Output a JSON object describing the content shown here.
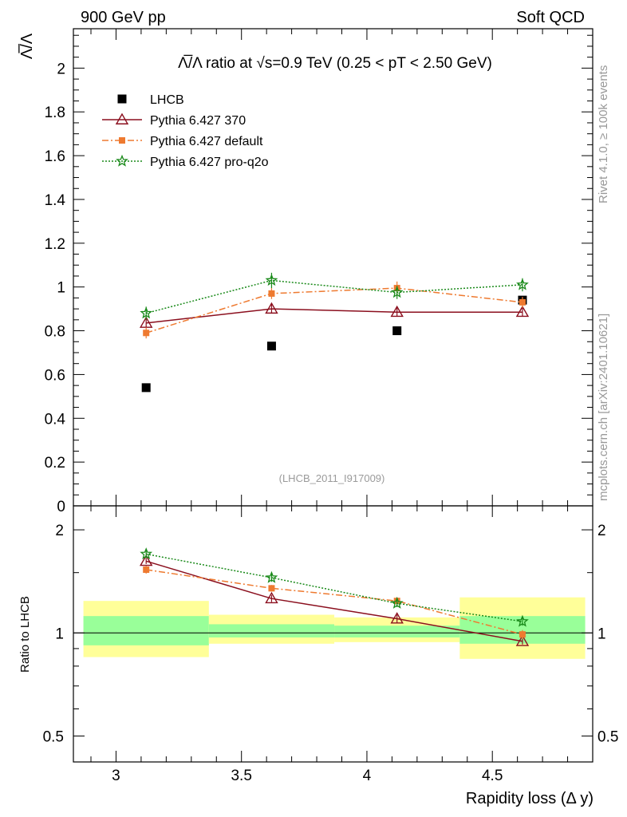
{
  "header": {
    "left": "900 GeV pp",
    "right": "Soft QCD"
  },
  "side_labels": {
    "rivet": "Rivet 4.1.0, ≥ 100k events",
    "mcplots": "mcplots.cern.ch [arXiv:2401.10621]"
  },
  "analysis_id": "(LHCB_2011_I917009)",
  "chart_data": [
    {
      "type": "scatter",
      "title": "Λ̅/Λ ratio at √s=0.9 TeV (0.25 < pT < 2.50 GeV)",
      "xlabel": "",
      "ylabel": "Λ̅/Λ",
      "xlim": [
        2.83,
        4.9
      ],
      "ylim": [
        0,
        2.18
      ],
      "yticks": [
        0,
        0.2,
        0.4,
        0.6,
        0.8,
        1,
        1.2,
        1.4,
        1.6,
        1.8,
        2
      ],
      "ytick_labels": [
        "0",
        "0.2",
        "0.4",
        "0.6",
        "0.8",
        "1",
        "1.2",
        "1.4",
        "1.6",
        "1.8",
        "2"
      ],
      "x": [
        3.12,
        3.62,
        4.12,
        4.62
      ],
      "series": [
        {
          "name": "LHCB",
          "marker": "square",
          "line": "none",
          "color": "#000000",
          "values": [
            0.54,
            0.73,
            0.8,
            0.94
          ],
          "errors": [
            0,
            0,
            0,
            0
          ]
        },
        {
          "name": "Pythia 6.427 370",
          "marker": "triangle",
          "line": "solid",
          "color": "#8b0f1e",
          "values": [
            0.835,
            0.9,
            0.885,
            0.885
          ],
          "errors": [
            0.02,
            0.02,
            0.02,
            0.02
          ]
        },
        {
          "name": "Pythia 6.427 default",
          "marker": "square-small",
          "line": "dashdot",
          "color": "#ee7a30",
          "values": [
            0.79,
            0.97,
            0.995,
            0.93
          ],
          "errors": [
            0.025,
            0.025,
            0.03,
            0.025
          ]
        },
        {
          "name": "Pythia 6.427 pro-q2o",
          "marker": "star",
          "line": "dotted",
          "color": "#1a8a1a",
          "values": [
            0.88,
            1.03,
            0.975,
            1.01
          ],
          "errors": [
            0.03,
            0.035,
            0.03,
            0.03
          ]
        }
      ]
    },
    {
      "type": "line",
      "title": "",
      "xlabel": "Rapidity loss (Δ y)",
      "ylabel": "Ratio to LHCB",
      "yscale": "log",
      "ylim": [
        0.42,
        2.35
      ],
      "xticks": [
        3,
        3.5,
        4,
        4.5
      ],
      "xtick_labels": [
        "3",
        "3.5",
        "4",
        "4.5"
      ],
      "yticks": [
        0.5,
        1,
        2
      ],
      "ytick_labels": [
        "0.5",
        "1",
        "2"
      ],
      "x": [
        3.12,
        3.62,
        4.12,
        4.62
      ],
      "bands": [
        {
          "x_range": [
            2.87,
            3.37
          ],
          "inner": [
            0.92,
            1.12
          ],
          "outer": [
            0.85,
            1.24
          ]
        },
        {
          "x_range": [
            3.37,
            3.87
          ],
          "inner": [
            0.97,
            1.06
          ],
          "outer": [
            0.93,
            1.13
          ]
        },
        {
          "x_range": [
            3.87,
            4.37
          ],
          "inner": [
            0.97,
            1.05
          ],
          "outer": [
            0.94,
            1.11
          ]
        },
        {
          "x_range": [
            4.37,
            4.87
          ],
          "inner": [
            0.93,
            1.12
          ],
          "outer": [
            0.84,
            1.27
          ]
        }
      ],
      "series": [
        {
          "name": "Pythia 6.427 370",
          "marker": "triangle",
          "line": "solid",
          "color": "#8b0f1e",
          "values": [
            1.62,
            1.26,
            1.1,
            0.945
          ],
          "errors": [
            0.03,
            0.03,
            0.03,
            0.02
          ]
        },
        {
          "name": "Pythia 6.427 default",
          "marker": "square-small",
          "line": "dashdot",
          "color": "#ee7a30",
          "values": [
            1.53,
            1.35,
            1.24,
            0.99
          ],
          "errors": [
            0.04,
            0.03,
            0.03,
            0.03
          ]
        },
        {
          "name": "Pythia 6.427 pro-q2o",
          "marker": "star",
          "line": "dotted",
          "color": "#1a8a1a",
          "values": [
            1.7,
            1.45,
            1.22,
            1.08
          ],
          "errors": [
            0.05,
            0.04,
            0.03,
            0.03
          ]
        }
      ]
    }
  ]
}
